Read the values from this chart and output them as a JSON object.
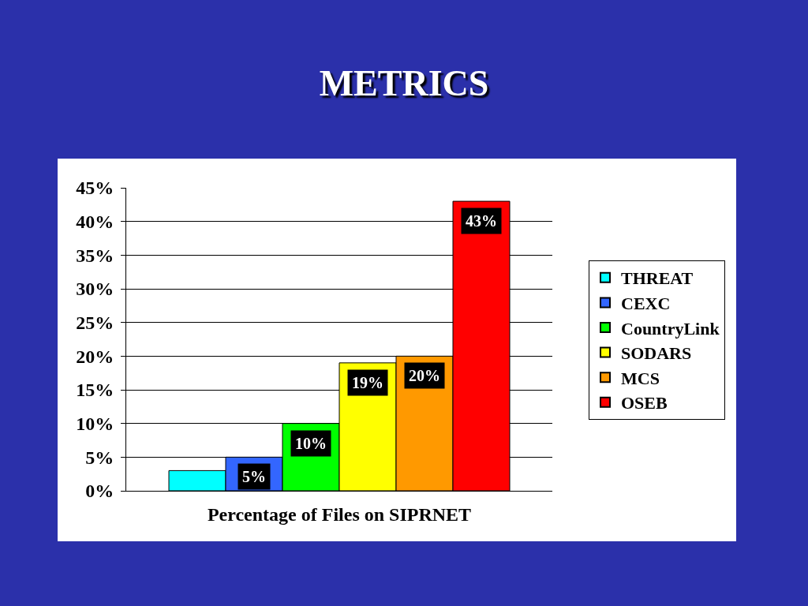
{
  "chart_data": {
    "type": "bar",
    "title": "METRICS",
    "categories": [
      "Percentage of Files on SIPRNET"
    ],
    "series": [
      {
        "name": "THREAT",
        "color": "#00ffff",
        "values": [
          3
        ],
        "value_labels": [
          null
        ]
      },
      {
        "name": "CEXC",
        "color": "#3366ff",
        "values": [
          5
        ],
        "value_labels": [
          "5%"
        ]
      },
      {
        "name": "CountryLink",
        "color": "#00ff00",
        "values": [
          10
        ],
        "value_labels": [
          "10%"
        ]
      },
      {
        "name": "SODARS",
        "color": "#ffff00",
        "values": [
          19
        ],
        "value_labels": [
          "19%"
        ]
      },
      {
        "name": "MCS",
        "color": "#ff9900",
        "values": [
          20
        ],
        "value_labels": [
          "20%"
        ]
      },
      {
        "name": "OSEB",
        "color": "#ff0000",
        "values": [
          43
        ],
        "value_labels": [
          "43%"
        ]
      }
    ],
    "ylim": [
      0,
      45
    ],
    "yticks": [
      {
        "value": 0,
        "label": "0%"
      },
      {
        "value": 5,
        "label": "5%"
      },
      {
        "value": 10,
        "label": "10%"
      },
      {
        "value": 15,
        "label": "15%"
      },
      {
        "value": 20,
        "label": "20%"
      },
      {
        "value": 25,
        "label": "25%"
      },
      {
        "value": 30,
        "label": "30%"
      },
      {
        "value": 35,
        "label": "35%"
      },
      {
        "value": 40,
        "label": "40%"
      },
      {
        "value": 45,
        "label": "45%"
      }
    ],
    "grid": "y",
    "legend": "right"
  }
}
